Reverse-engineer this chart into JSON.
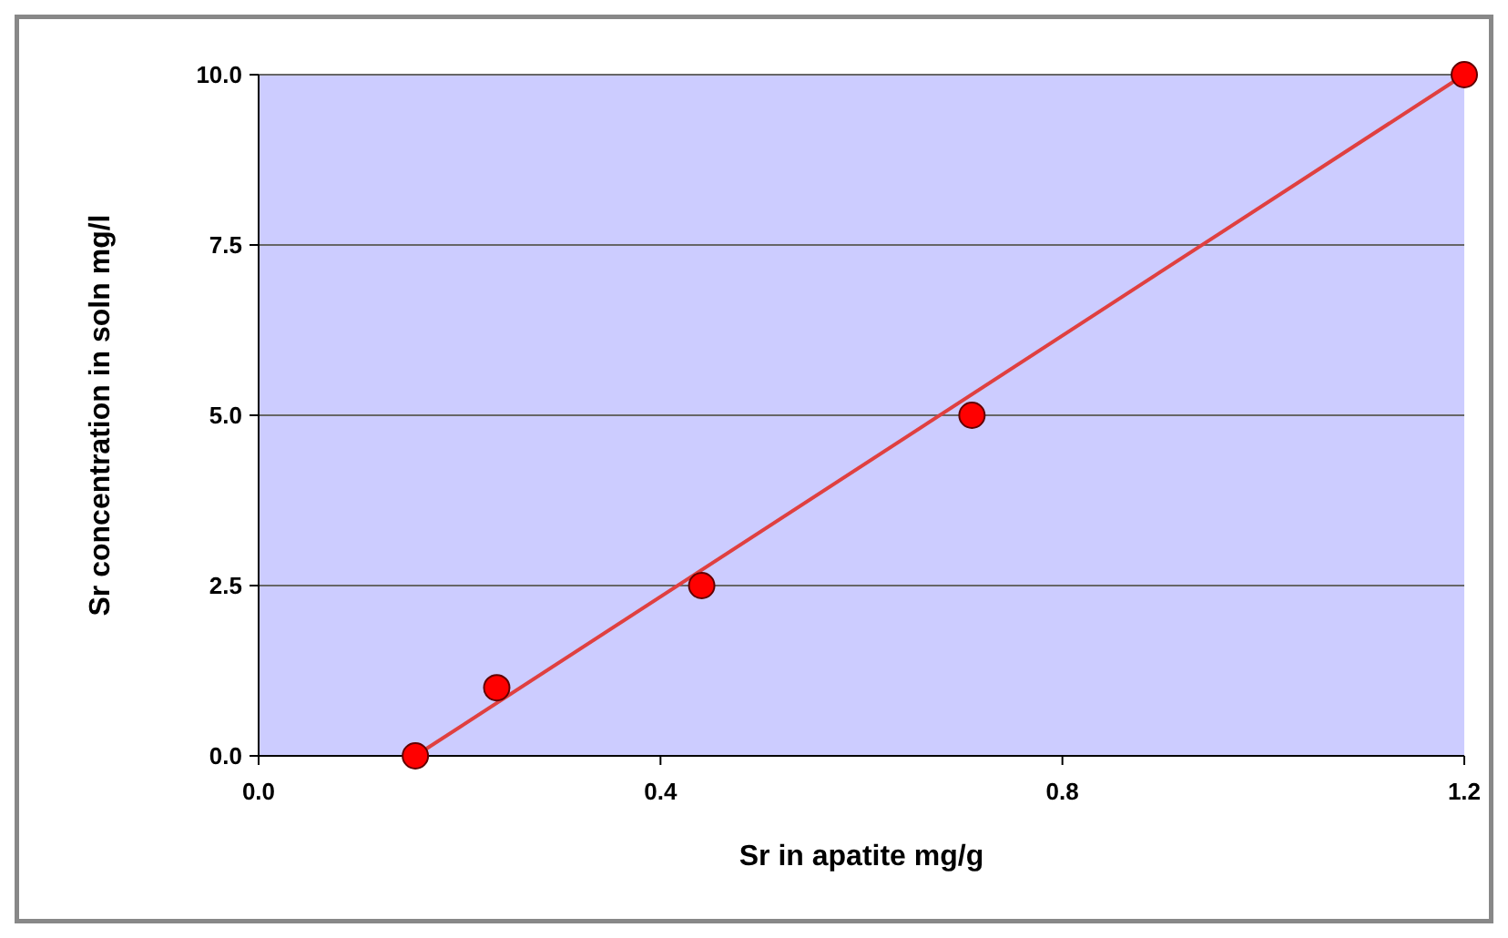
{
  "chart_data": {
    "type": "scatter",
    "xlabel": "Sr in apatite mg/g",
    "ylabel": "Sr concentration in soln mg/l",
    "series": [
      {
        "color": "#ff0000",
        "marker": "circle",
        "x": [
          0.156,
          0.237,
          0.441,
          0.71,
          1.2
        ],
        "values": [
          0,
          1,
          2.5,
          5,
          10
        ]
      },
      {
        "type": "line",
        "color": "#e04040",
        "x": [
          0.156,
          1.2
        ],
        "values": [
          0,
          10
        ]
      }
    ],
    "xlim": [
      0,
      1.2
    ],
    "xticks": [
      {
        "value": 0,
        "label": "0.0"
      },
      0.4,
      0.8,
      1.2
    ],
    "ylim": [
      0,
      10
    ],
    "yticks": [
      {
        "value": 0,
        "label": "0.0"
      },
      2.5,
      {
        "value": 5,
        "label": "5.0"
      },
      7.5,
      {
        "value": 10,
        "label": "10.0"
      }
    ],
    "grid": "y"
  }
}
